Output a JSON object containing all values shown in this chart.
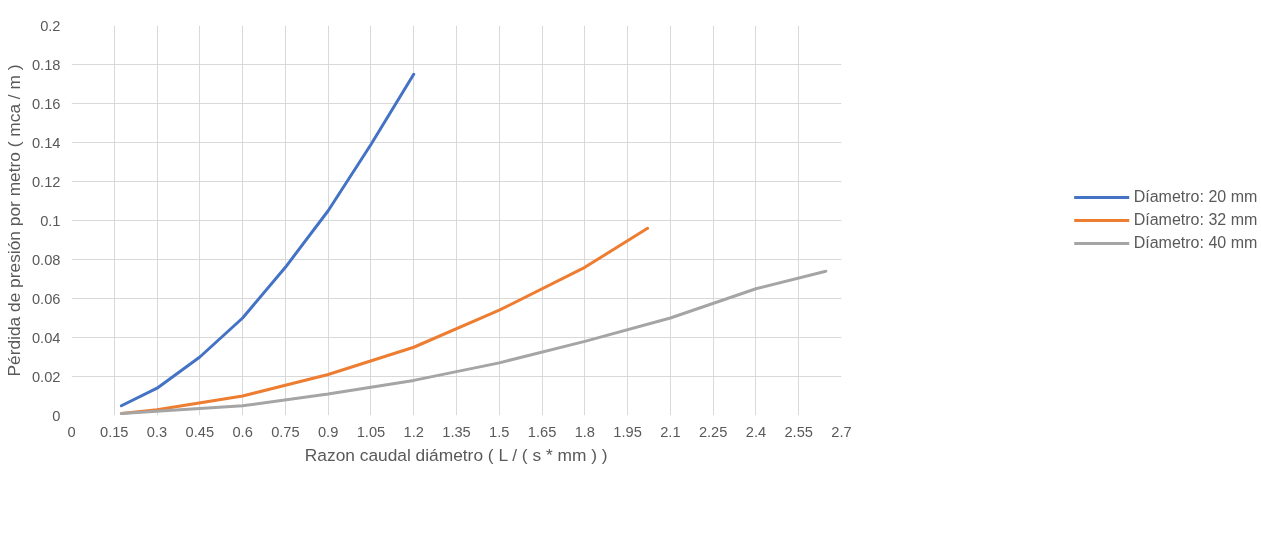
{
  "chart_data": {
    "type": "line",
    "xlabel": "Razon caudal diámetro ( L / ( s * mm ) )",
    "ylabel": "Pérdida de presión por metro ( mca / m )",
    "xlim": [
      0,
      2.7
    ],
    "xticks": [
      0,
      0.15,
      0.3,
      0.45,
      0.6,
      0.75,
      0.9,
      1.05,
      1.2,
      1.35,
      1.5,
      1.65,
      1.8,
      1.95,
      2.1,
      2.25,
      2.4,
      2.55,
      2.7
    ],
    "ylim": [
      0,
      0.2
    ],
    "yticks": [
      0,
      0.02,
      0.04,
      0.06,
      0.08,
      0.1,
      0.12,
      0.14,
      0.16,
      0.18,
      0.2
    ],
    "grid": true,
    "legend": "right",
    "marker": "none",
    "line_style": "solid",
    "series": [
      {
        "name": "Díametro: 20 mm",
        "color": "#4472c4",
        "x": [
          0.175,
          0.3,
          0.45,
          0.6,
          0.75,
          0.9,
          1.05,
          1.2
        ],
        "values": [
          0.005,
          0.014,
          0.03,
          0.05,
          0.076,
          0.105,
          0.139,
          0.175
        ]
      },
      {
        "name": "Díametro: 32 mm",
        "color": "#ed7d31",
        "x": [
          0.175,
          0.3,
          0.6,
          0.9,
          1.2,
          1.5,
          1.8,
          2.02
        ],
        "values": [
          0.001,
          0.003,
          0.01,
          0.021,
          0.035,
          0.054,
          0.076,
          0.096
        ]
      },
      {
        "name": "Díametro: 40 mm",
        "color": "#a5a5a5",
        "x": [
          0.175,
          0.6,
          0.9,
          1.2,
          1.5,
          1.8,
          2.1,
          2.4,
          2.645
        ],
        "values": [
          0.001,
          0.005,
          0.011,
          0.018,
          0.027,
          0.038,
          0.05,
          0.065,
          0.074
        ]
      }
    ]
  }
}
